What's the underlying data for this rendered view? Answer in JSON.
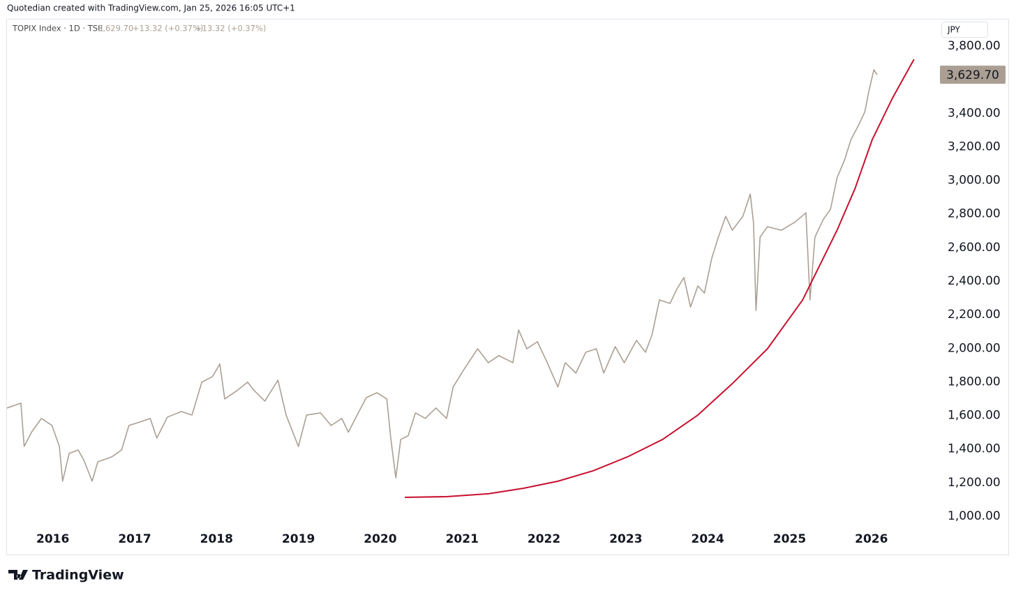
{
  "chart_data": {
    "type": "line",
    "header": "Quotedian created with TradingView.com, Jan 25, 2026 16:05 UTC+1",
    "symbol": "TOPIX Index · 1D · TSE",
    "legend_price": "3,629.70",
    "legend_change": "+13.32 (+0.37%)",
    "legend_change_2": "+13.32 (+0.37%)",
    "currency": "JPY",
    "brand": "TradingView",
    "last_price": {
      "value": 3629.7,
      "label": "3,629.70"
    },
    "xlim": [
      2015.44,
      2026.82
    ],
    "xticks": [
      2016,
      2017,
      2018,
      2019,
      2020,
      2021,
      2022,
      2023,
      2024,
      2025,
      2026
    ],
    "ylim": [
      929,
      3950
    ],
    "yticks": [
      {
        "value": 1000,
        "label": "1,000.00"
      },
      {
        "value": 1200,
        "label": "1,200.00"
      },
      {
        "value": 1400,
        "label": "1,400.00"
      },
      {
        "value": 1600,
        "label": "1,600.00"
      },
      {
        "value": 1800,
        "label": "1,800.00"
      },
      {
        "value": 2000,
        "label": "2,000.00"
      },
      {
        "value": 2200,
        "label": "2,200.00"
      },
      {
        "value": 2400,
        "label": "2,400.00"
      },
      {
        "value": 2600,
        "label": "2,600.00"
      },
      {
        "value": 2800,
        "label": "2,800.00"
      },
      {
        "value": 3000,
        "label": "3,000.00"
      },
      {
        "value": 3200,
        "label": "3,200.00"
      },
      {
        "value": 3400,
        "label": "3,400.00"
      },
      {
        "value": 3800,
        "label": "3,800.00"
      }
    ],
    "grid": false,
    "series": [
      {
        "color": "#ab9f93",
        "x": [
          2015.44,
          2015.61,
          2015.65,
          2015.74,
          2015.86,
          2015.99,
          2016.08,
          2016.12,
          2016.2,
          2016.31,
          2016.38,
          2016.48,
          2016.55,
          2016.72,
          2016.84,
          2016.93,
          2017.06,
          2017.19,
          2017.27,
          2017.4,
          2017.57,
          2017.7,
          2017.82,
          2017.95,
          2018.04,
          2018.1,
          2018.25,
          2018.38,
          2018.46,
          2018.59,
          2018.75,
          2018.85,
          2019.0,
          2019.1,
          2019.27,
          2019.4,
          2019.53,
          2019.61,
          2019.74,
          2019.83,
          2019.96,
          2020.08,
          2020.13,
          2020.19,
          2020.25,
          2020.34,
          2020.43,
          2020.55,
          2020.68,
          2020.81,
          2020.89,
          2021.02,
          2021.19,
          2021.32,
          2021.45,
          2021.62,
          2021.69,
          2021.79,
          2021.92,
          2022.04,
          2022.17,
          2022.26,
          2022.39,
          2022.51,
          2022.64,
          2022.73,
          2022.87,
          2022.98,
          2023.13,
          2023.24,
          2023.32,
          2023.41,
          2023.54,
          2023.62,
          2023.71,
          2023.79,
          2023.88,
          2023.96,
          2024.05,
          2024.13,
          2024.22,
          2024.3,
          2024.43,
          2024.52,
          2024.56,
          2024.59,
          2024.64,
          2024.73,
          2024.9,
          2025.07,
          2025.2,
          2025.25,
          2025.31,
          2025.41,
          2025.5,
          2025.58,
          2025.67,
          2025.75,
          2025.84,
          2025.92,
          2025.97,
          2026.03,
          2026.07
        ],
        "values": [
          1644,
          1673,
          1415,
          1500,
          1582,
          1540,
          1415,
          1208,
          1374,
          1394,
          1332,
          1208,
          1324,
          1353,
          1394,
          1540,
          1560,
          1582,
          1465,
          1590,
          1623,
          1602,
          1798,
          1831,
          1906,
          1698,
          1748,
          1798,
          1748,
          1685,
          1810,
          1602,
          1415,
          1602,
          1615,
          1540,
          1582,
          1500,
          1623,
          1706,
          1735,
          1698,
          1457,
          1228,
          1457,
          1478,
          1615,
          1582,
          1644,
          1582,
          1769,
          1872,
          1997,
          1914,
          1956,
          1914,
          2109,
          1997,
          2039,
          1914,
          1769,
          1914,
          1852,
          1976,
          1997,
          1852,
          2010,
          1914,
          2047,
          1976,
          2080,
          2288,
          2267,
          2350,
          2421,
          2246,
          2371,
          2329,
          2537,
          2662,
          2786,
          2703,
          2786,
          2919,
          2745,
          2225,
          2662,
          2724,
          2703,
          2753,
          2807,
          2288,
          2662,
          2766,
          2828,
          3015,
          3119,
          3243,
          3326,
          3409,
          3534,
          3659,
          3629.7
        ]
      },
      {
        "color": "#c8102e",
        "x": [
          2020.3,
          2020.81,
          2021.32,
          2021.75,
          2022.17,
          2022.6,
          2023.02,
          2023.45,
          2023.88,
          2024.3,
          2024.73,
          2025.16,
          2025.58,
          2025.8,
          2026.01,
          2026.26,
          2026.52
        ],
        "values": [
          1112,
          1116,
          1133,
          1166,
          1208,
          1270,
          1353,
          1457,
          1602,
          1789,
          1997,
          2288,
          2703,
          2952,
          3243,
          3493,
          3721
        ]
      }
    ]
  }
}
